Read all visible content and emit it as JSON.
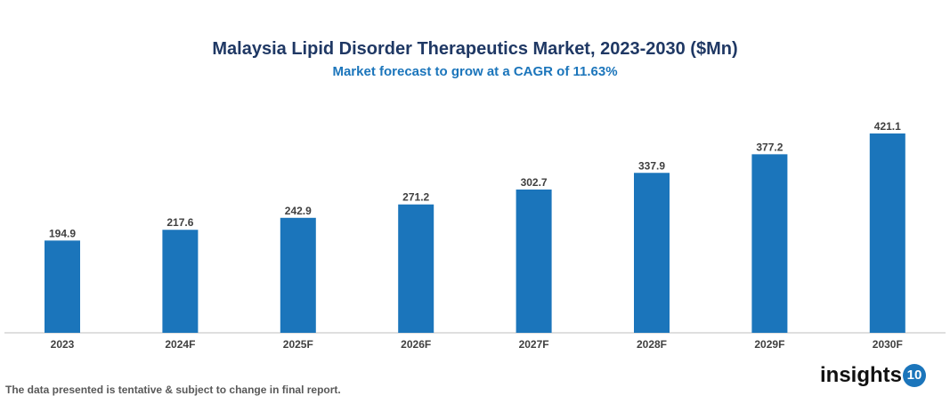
{
  "chart_data": {
    "type": "bar",
    "title": "Malaysia Lipid Disorder Therapeutics Market, 2023-2030 ($Mn)",
    "subtitle": "Market forecast to grow at a CAGR of 11.63%",
    "categories": [
      "2023",
      "2024F",
      "2025F",
      "2026F",
      "2027F",
      "2028F",
      "2029F",
      "2030F"
    ],
    "values": [
      194.9,
      217.6,
      242.9,
      271.2,
      302.7,
      337.9,
      377.2,
      421.1
    ],
    "value_labels": [
      "194.9",
      "217.6",
      "242.9",
      "271.2",
      "302.7",
      "337.9",
      "377.2",
      "421.1"
    ],
    "xlabel": "",
    "ylabel": "",
    "ylim": [
      0,
      421.1
    ],
    "grid": false,
    "bar_color": "#1b75bb"
  },
  "footer": {
    "note": "The data presented is tentative & subject to change in final report.",
    "logo_text": "insights",
    "logo_number": "10"
  }
}
